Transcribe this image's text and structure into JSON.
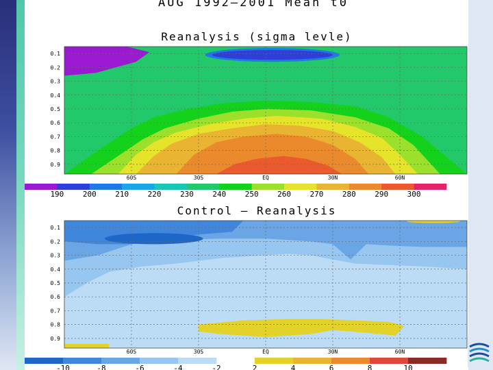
{
  "title": "AUG 1992—2001 Mean t0",
  "colors": {
    "left_band": "#2a2f7a",
    "accent_teal": "#4ec9a8",
    "right_band": "#dfe6f4"
  },
  "chart_data": [
    {
      "type": "heatmap",
      "title": "Reanalysis (sigma levle)",
      "xlabel": "",
      "ylabel": "",
      "x_ticks": [
        "60S",
        "30S",
        "EQ",
        "30N",
        "60N"
      ],
      "y_ticks": [
        "0.1",
        "0.2",
        "0.3",
        "0.4",
        "0.5",
        "0.6",
        "0.7",
        "0.8",
        "0.9"
      ],
      "xlim": [
        -90,
        90
      ],
      "ylim": [
        0.05,
        0.97
      ],
      "grid": true,
      "colorbar": {
        "labels": [
          "190",
          "200",
          "210",
          "220",
          "230",
          "240",
          "250",
          "260",
          "270",
          "280",
          "290",
          "300"
        ],
        "colors": [
          "#9a1ad2",
          "#2e3fd9",
          "#1f7ae6",
          "#18a8ea",
          "#1cc6b4",
          "#23c86b",
          "#14d21c",
          "#9be02b",
          "#e5e42a",
          "#e9b431",
          "#ea8a2c",
          "#ea5a2d",
          "#e3246b"
        ]
      },
      "contours": [
        {
          "level": "230",
          "color": "#23c86b",
          "x": [
            -90,
            -70,
            -55,
            -45,
            -35,
            -20,
            0,
            20,
            40,
            55,
            70,
            90
          ],
          "y": [
            0.97,
            0.66,
            0.54,
            0.48,
            0.44,
            0.4,
            0.38,
            0.39,
            0.42,
            0.5,
            0.62,
            0.97
          ]
        },
        {
          "level": "240",
          "color": "#14d21c",
          "x": [
            -90,
            -75,
            -60,
            -50,
            -35,
            -20,
            0,
            20,
            40,
            55,
            70,
            90
          ],
          "y": [
            0.97,
            0.8,
            0.64,
            0.56,
            0.5,
            0.46,
            0.44,
            0.45,
            0.48,
            0.56,
            0.7,
            0.97
          ]
        },
        {
          "level": "250",
          "color": "#9be02b",
          "x": [
            -78,
            -66,
            -55,
            -45,
            -30,
            -15,
            0,
            20,
            40,
            55,
            66,
            78
          ],
          "y": [
            0.97,
            0.84,
            0.72,
            0.64,
            0.57,
            0.52,
            0.5,
            0.51,
            0.56,
            0.64,
            0.76,
            0.97
          ]
        },
        {
          "level": "260",
          "color": "#e5e42a",
          "x": [
            -66,
            -58,
            -50,
            -40,
            -25,
            -10,
            5,
            25,
            40,
            52,
            60,
            68
          ],
          "y": [
            0.97,
            0.83,
            0.74,
            0.67,
            0.61,
            0.57,
            0.55,
            0.57,
            0.63,
            0.71,
            0.83,
            0.97
          ]
        },
        {
          "level": "270",
          "color": "#e9b431",
          "x": [
            -58,
            -50,
            -42,
            -30,
            -15,
            0,
            15,
            30,
            42,
            52,
            58
          ],
          "y": [
            0.97,
            0.84,
            0.75,
            0.68,
            0.64,
            0.61,
            0.62,
            0.66,
            0.74,
            0.85,
            0.97
          ]
        },
        {
          "level": "280",
          "color": "#ea8a2c",
          "x": [
            -40,
            -32,
            -22,
            -10,
            5,
            18,
            30,
            40,
            46
          ],
          "y": [
            0.97,
            0.83,
            0.74,
            0.7,
            0.68,
            0.7,
            0.76,
            0.86,
            0.97
          ]
        },
        {
          "level": "290",
          "color": "#ea5a2d",
          "x": [
            -22,
            -14,
            -4,
            8,
            18,
            28,
            34
          ],
          "y": [
            0.97,
            0.9,
            0.86,
            0.84,
            0.86,
            0.91,
            0.97
          ]
        }
      ],
      "features": [
        {
          "name": "stratosphere-cold",
          "level": "190",
          "color": "#9a1ad2",
          "x": [
            -90,
            -62,
            -52,
            -58,
            -76,
            -90
          ],
          "y": [
            0.05,
            0.05,
            0.09,
            0.16,
            0.24,
            0.26
          ]
        },
        {
          "name": "tropopause-cold-core",
          "level": "210",
          "color": "#1f7ae6",
          "cx": 3,
          "cy": 0.11,
          "rx": 30,
          "ry": 0.05
        },
        {
          "name": "tropopause-core",
          "level": "200",
          "color": "#2e3fd9",
          "cx": 3,
          "cy": 0.11,
          "rx": 27,
          "ry": 0.035
        }
      ]
    },
    {
      "type": "heatmap",
      "title": "Control — Reanalysis",
      "xlabel": "",
      "ylabel": "",
      "x_ticks": [
        "60S",
        "30S",
        "EQ",
        "30N",
        "60N"
      ],
      "y_ticks": [
        "0.1",
        "0.2",
        "0.3",
        "0.4",
        "0.5",
        "0.6",
        "0.7",
        "0.8",
        "0.9"
      ],
      "xlim": [
        -90,
        90
      ],
      "ylim": [
        0.05,
        0.97
      ],
      "grid": true,
      "colorbar": {
        "labels": [
          "-10",
          "-8",
          "-6",
          "-4",
          "-2",
          "2",
          "4",
          "6",
          "8",
          "10"
        ],
        "colors": [
          "#1e66c8",
          "#3f86dc",
          "#6aa6e6",
          "#97c6f0",
          "#bcdcf6",
          "#ffffff",
          "#e3d22a",
          "#e9b431",
          "#ea8a2c",
          "#e3463a",
          "#8a2a22"
        ]
      },
      "contours": [
        {
          "level": "-2",
          "color": "#bcdcf6",
          "x": [
            -90,
            -80,
            -70,
            -60,
            -50,
            -40,
            -30,
            -15,
            0,
            15,
            30,
            45,
            60,
            75,
            90
          ],
          "y": [
            0.05,
            0.05,
            0.05,
            0.05,
            0.05,
            0.05,
            0.05,
            0.05,
            0.05,
            0.05,
            0.05,
            0.05,
            0.05,
            0.05,
            0.05
          ]
        }
      ],
      "features": [
        {
          "name": "cooling-band-top",
          "level": "-4",
          "color": "#97c6f0",
          "x": [
            -90,
            90,
            90,
            70,
            55,
            40,
            30,
            20,
            10,
            0,
            -10,
            -20,
            -30,
            -40,
            -55,
            -70,
            -80,
            -90
          ],
          "y": [
            0.05,
            0.05,
            0.4,
            0.38,
            0.37,
            0.36,
            0.33,
            0.3,
            0.29,
            0.3,
            0.31,
            0.32,
            0.34,
            0.36,
            0.38,
            0.42,
            0.5,
            0.6
          ]
        },
        {
          "name": "cooling-band-mid",
          "level": "-6",
          "color": "#6aa6e6",
          "x": [
            -90,
            90,
            90,
            70,
            55,
            45,
            38,
            30,
            20,
            10,
            0,
            -20,
            -40,
            -60,
            -75,
            -90
          ],
          "y": [
            0.05,
            0.05,
            0.24,
            0.24,
            0.23,
            0.22,
            0.33,
            0.22,
            0.2,
            0.19,
            0.18,
            0.18,
            0.19,
            0.22,
            0.3,
            0.34
          ]
        },
        {
          "name": "cooling-core-left",
          "level": "-8",
          "color": "#3f86dc",
          "x": [
            -90,
            -10,
            -15,
            -30,
            -45,
            -60,
            -75,
            -90
          ],
          "y": [
            0.05,
            0.05,
            0.13,
            0.15,
            0.18,
            0.22,
            0.22,
            0.2
          ]
        },
        {
          "name": "cooling-core-deep",
          "level": "-10",
          "color": "#1e66c8",
          "cx": -50,
          "cy": 0.18,
          "rx": 22,
          "ry": 0.04
        },
        {
          "name": "warming-lower",
          "level": "4",
          "color": "#e3d22a",
          "x": [
            -30,
            -10,
            10,
            25,
            40,
            55,
            62,
            58,
            45,
            30,
            20,
            0,
            -20,
            -30
          ],
          "y": [
            0.8,
            0.77,
            0.76,
            0.76,
            0.77,
            0.78,
            0.81,
            0.88,
            0.86,
            0.84,
            0.87,
            0.89,
            0.87,
            0.85
          ]
        },
        {
          "name": "warming-top",
          "level": "4",
          "color": "#e3d22a",
          "cx": 75,
          "cy": 0.055,
          "rx": 12,
          "ry": 0.012
        },
        {
          "name": "warming-bottom-left",
          "level": "2",
          "color": "#e3d22a",
          "x": [
            -90,
            -70,
            -70,
            -90
          ],
          "y": [
            0.94,
            0.94,
            0.97,
            0.97
          ]
        }
      ]
    }
  ]
}
